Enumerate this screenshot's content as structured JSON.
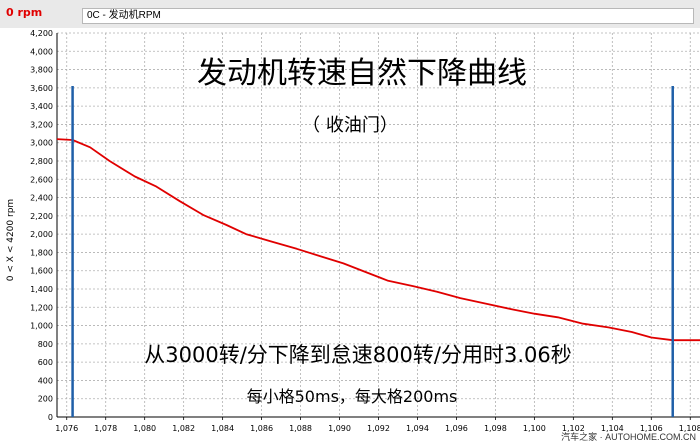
{
  "header": {
    "rpm_label": "0 rpm",
    "channel": "0C - 发动机RPM"
  },
  "watermark": "汽车之家 · AUTOHOME.COM.CN",
  "colors": {
    "curve": "#e00000",
    "cursor": "#1f5fa8",
    "grid": "#b0b0b0"
  },
  "chart_data": {
    "type": "line",
    "title": "发动机转速自然下降曲线",
    "subtitle": "（ 收油门）",
    "annotations": [
      "从3000转/分下降到怠速800转/分用时3.06秒",
      "每小格50ms，每大格200ms"
    ],
    "ylabel": "0 < X < 4200 rpm",
    "ylim": [
      0,
      4200
    ],
    "xlim": [
      1.0755,
      1.1085
    ],
    "y_ticks": [
      0,
      200,
      400,
      600,
      800,
      1000,
      1200,
      1400,
      1600,
      1800,
      2000,
      2200,
      2400,
      2600,
      2800,
      3000,
      3200,
      3400,
      3600,
      3800,
      4000,
      4200
    ],
    "y_tick_labels": [
      "0",
      "200",
      "400",
      "600",
      "800",
      "1,000",
      "1,200",
      "1,400",
      "1,600",
      "1,800",
      "2,000",
      "2,200",
      "2,400",
      "2,600",
      "2,800",
      "3,000",
      "3,200",
      "3,400",
      "3,600",
      "3,800",
      "4,000",
      "4,200"
    ],
    "x_ticks": [
      1.076,
      1.078,
      1.08,
      1.082,
      1.084,
      1.086,
      1.088,
      1.09,
      1.092,
      1.094,
      1.096,
      1.098,
      1.1,
      1.102,
      1.104,
      1.106,
      1.108
    ],
    "x_tick_labels": [
      "1,076",
      "1,078",
      "1,080",
      "1,082",
      "1,084",
      "1,086",
      "1,088",
      "1,090",
      "1,092",
      "1,094",
      "1,096",
      "1,098",
      "1,100",
      "1,102",
      "1,104",
      "1,106",
      "1,108"
    ],
    "grid": true,
    "cursors": [
      1.0763,
      1.1071
    ],
    "series": [
      {
        "x": [
          1.0755,
          1.0763,
          1.0772,
          1.0782,
          1.0795,
          1.0806,
          1.0818,
          1.083,
          1.0842,
          1.0852,
          1.0865,
          1.0878,
          1.089,
          1.0902,
          1.0914,
          1.0925,
          1.0938,
          1.095,
          1.0962,
          1.0975,
          1.0988,
          1.1,
          1.1012,
          1.1025,
          1.1038,
          1.105,
          1.106,
          1.1071,
          1.1085
        ],
        "y": [
          3040,
          3030,
          2950,
          2800,
          2630,
          2520,
          2360,
          2210,
          2100,
          2000,
          1920,
          1840,
          1760,
          1680,
          1580,
          1490,
          1430,
          1370,
          1300,
          1240,
          1180,
          1130,
          1090,
          1020,
          980,
          930,
          870,
          840,
          840
        ]
      }
    ]
  }
}
